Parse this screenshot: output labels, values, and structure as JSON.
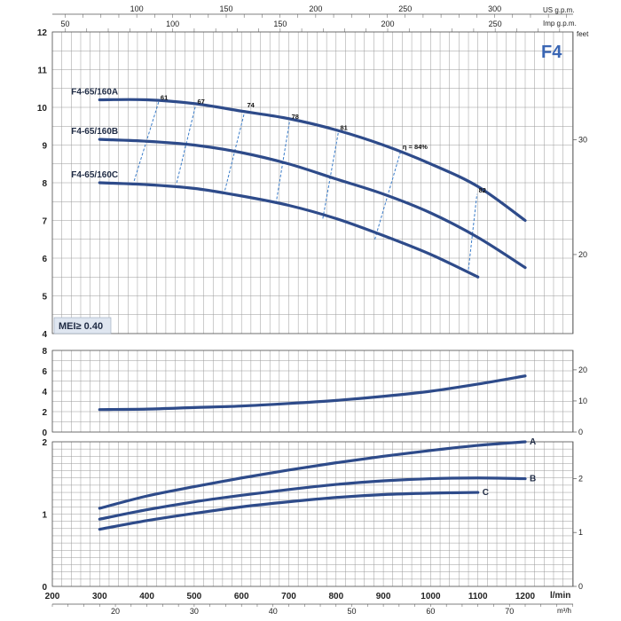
{
  "badge": "F4",
  "mei_label": "MEI≥ 0.40",
  "colors": {
    "curve": "#2e4b8a",
    "efficiency_line": "#3a7cc9",
    "badge": "#3a66b4",
    "mei_box": "#dfe6f0",
    "grid": "#9a9a9a"
  },
  "axes": {
    "bottom_unit": "l/min",
    "bottom2_unit": "m³/h",
    "top_unit_us": "US g.p.m.",
    "top_unit_imp": "Imp g.p.m.",
    "right_unit_head": "feet",
    "bottom_ticks": [
      "200",
      "300",
      "400",
      "500",
      "600",
      "700",
      "800",
      "900",
      "1000",
      "1100",
      "1200"
    ],
    "bottom2_ticks": [
      "20",
      "30",
      "40",
      "50",
      "60",
      "70"
    ],
    "top_us_ticks": [
      "100",
      "150",
      "200",
      "250",
      "300"
    ],
    "top_imp_ticks": [
      "50",
      "100",
      "150",
      "200",
      "250"
    ],
    "head_ticks": [
      "4",
      "5",
      "6",
      "7",
      "8",
      "9",
      "10",
      "11",
      "12"
    ],
    "head_feet_ticks": [
      "20",
      "30"
    ],
    "npsh_ticks": [
      "0",
      "2",
      "4",
      "6",
      "8"
    ],
    "npsh_feet_ticks": [
      "0",
      "10",
      "20"
    ],
    "power_ticks": [
      "0",
      "1",
      "2"
    ],
    "power_right_ticks": [
      "0",
      "1",
      "2"
    ]
  },
  "chart_data": [
    {
      "type": "line",
      "panel": "head",
      "xlim": [
        200,
        1300
      ],
      "ylim": [
        4,
        12
      ],
      "grid": true,
      "series": [
        {
          "name": "F4-65/160A",
          "x": [
            300,
            400,
            500,
            600,
            700,
            800,
            900,
            1000,
            1100,
            1200
          ],
          "y": [
            10.2,
            10.2,
            10.1,
            9.9,
            9.7,
            9.4,
            9.0,
            8.5,
            7.9,
            7.0
          ]
        },
        {
          "name": "F4-65/160B",
          "x": [
            300,
            400,
            500,
            600,
            700,
            800,
            900,
            1000,
            1100,
            1200
          ],
          "y": [
            9.15,
            9.1,
            9.0,
            8.8,
            8.5,
            8.1,
            7.7,
            7.2,
            6.55,
            5.75
          ]
        },
        {
          "name": "F4-65/160C",
          "x": [
            300,
            400,
            500,
            600,
            700,
            800,
            900,
            1000,
            1100
          ],
          "y": [
            8.0,
            7.95,
            7.85,
            7.65,
            7.4,
            7.05,
            6.6,
            6.1,
            5.5
          ]
        }
      ],
      "efficiency_lines": [
        {
          "label": "61",
          "x": [
            373,
            425
          ],
          "y": [
            8.05,
            10.15
          ]
        },
        {
          "label": "67",
          "x": [
            463,
            503
          ],
          "y": [
            8.0,
            10.05
          ]
        },
        {
          "label": "74",
          "x": [
            565,
            608
          ],
          "y": [
            7.8,
            9.95
          ]
        },
        {
          "label": "78",
          "x": [
            673,
            702
          ],
          "y": [
            7.45,
            9.65
          ]
        },
        {
          "label": "81",
          "x": [
            772,
            805
          ],
          "y": [
            7.05,
            9.35
          ]
        },
        {
          "label": "η = 84%",
          "x": [
            882,
            937
          ],
          "y": [
            6.5,
            8.85
          ]
        },
        {
          "label": "82",
          "x": [
            1080,
            1098
          ],
          "y": [
            5.7,
            7.7
          ]
        }
      ]
    },
    {
      "type": "line",
      "panel": "npsh",
      "xlim": [
        200,
        1300
      ],
      "ylim": [
        0,
        8
      ],
      "grid": true,
      "series": [
        {
          "name": "",
          "x": [
            300,
            400,
            500,
            600,
            700,
            800,
            900,
            1000,
            1100,
            1200
          ],
          "y": [
            2.2,
            2.25,
            2.4,
            2.55,
            2.8,
            3.1,
            3.5,
            4.0,
            4.7,
            5.5
          ]
        }
      ]
    },
    {
      "type": "line",
      "panel": "power",
      "xlim": [
        200,
        1300
      ],
      "ylim": [
        0,
        2
      ],
      "grid": true,
      "series": [
        {
          "name": "A",
          "x": [
            300,
            400,
            500,
            600,
            700,
            800,
            900,
            1000,
            1100,
            1200
          ],
          "y": [
            1.08,
            1.25,
            1.38,
            1.5,
            1.61,
            1.71,
            1.8,
            1.88,
            1.95,
            2.0
          ]
        },
        {
          "name": "B",
          "x": [
            300,
            400,
            500,
            600,
            700,
            800,
            900,
            1000,
            1100,
            1200
          ],
          "y": [
            0.93,
            1.06,
            1.17,
            1.26,
            1.34,
            1.41,
            1.46,
            1.49,
            1.5,
            1.49
          ]
        },
        {
          "name": "C",
          "x": [
            300,
            400,
            500,
            600,
            700,
            800,
            900,
            1000,
            1100
          ],
          "y": [
            0.79,
            0.91,
            1.01,
            1.1,
            1.17,
            1.23,
            1.27,
            1.29,
            1.3
          ]
        }
      ]
    }
  ]
}
